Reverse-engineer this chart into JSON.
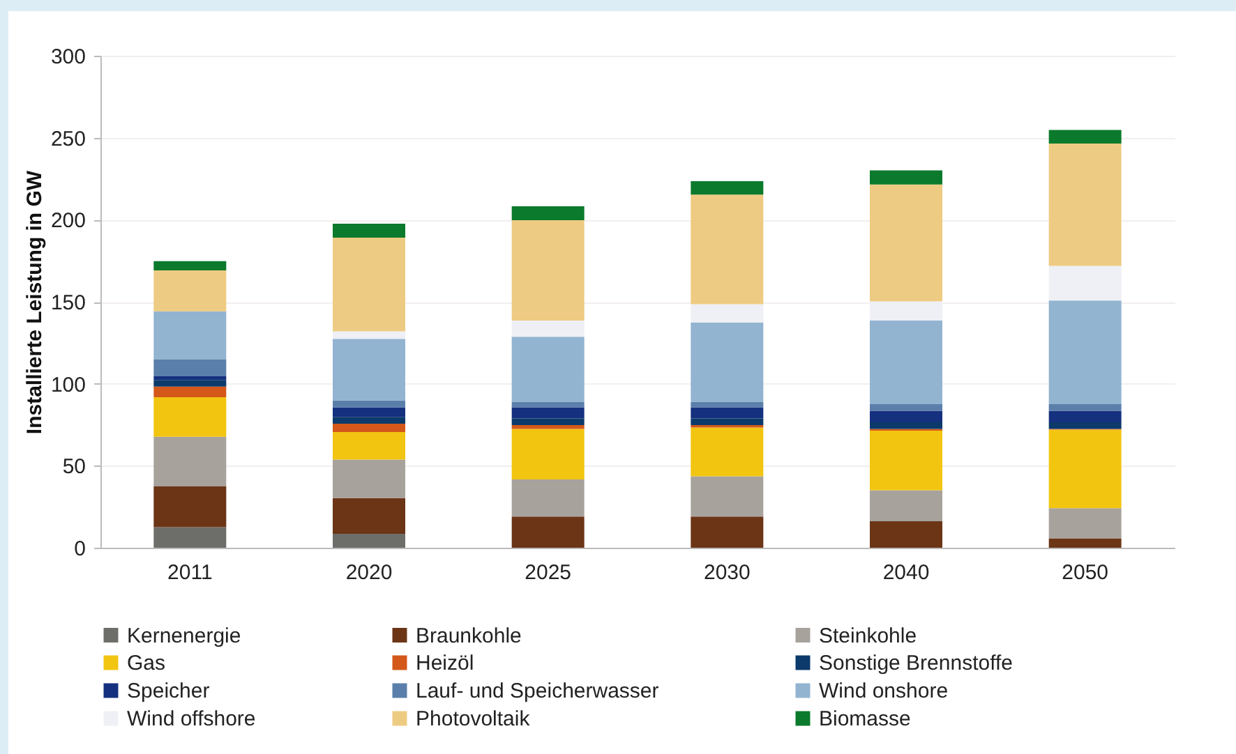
{
  "chart_data": {
    "type": "bar",
    "stacked": true,
    "ylabel": "Installierte Leistung in GW",
    "categories": [
      "2011",
      "2020",
      "2025",
      "2030",
      "2040",
      "2050"
    ],
    "ylim": [
      0,
      300
    ],
    "yticks": [
      0,
      50,
      100,
      150,
      200,
      250,
      300
    ],
    "grid": "y",
    "legend": "bottom",
    "series": [
      {
        "name": "Kernenergie",
        "color": "#6d6e6a",
        "values": [
          12.5,
          8.5,
          0,
          0,
          0,
          0
        ]
      },
      {
        "name": "Braunkohle",
        "color": "#6b3516",
        "values": [
          24.9,
          21.8,
          19,
          19,
          16.1,
          5.7
        ]
      },
      {
        "name": "Steinkohle",
        "color": "#a7a29c",
        "values": [
          30.3,
          23.5,
          22.6,
          24.6,
          19,
          18.4
        ]
      },
      {
        "name": "Gas",
        "color": "#f2c511",
        "values": [
          24.1,
          16.7,
          30.9,
          29.7,
          36.3,
          47.9
        ]
      },
      {
        "name": "Heizöl",
        "color": "#d4581a",
        "values": [
          6.5,
          5.1,
          2.3,
          1.5,
          1.1,
          0.5
        ]
      },
      {
        "name": "Sonstige Brennstoffe",
        "color": "#0b3a6b",
        "values": [
          4,
          4,
          4,
          4,
          4,
          4
        ]
      },
      {
        "name": "Speicher",
        "color": "#14307e",
        "values": [
          2.2,
          6,
          6.8,
          6.8,
          7,
          7
        ]
      },
      {
        "name": "Lauf- und Speicherwasser",
        "color": "#5a7fab",
        "values": [
          10.2,
          4.2,
          3.4,
          3.4,
          4,
          4
        ]
      },
      {
        "name": "Wind onshore",
        "color": "#92b4d0",
        "values": [
          29.5,
          37.6,
          39.6,
          48.4,
          51,
          63.2
        ]
      },
      {
        "name": "Wind offshore",
        "color": "#eef0f5",
        "values": [
          0,
          4.5,
          9.9,
          11.1,
          11.7,
          21.2
        ]
      },
      {
        "name": "Photovoltaik",
        "color": "#eecb82",
        "values": [
          24.9,
          57.2,
          61.2,
          66.8,
          71.3,
          74.6
        ]
      },
      {
        "name": "Biomasse",
        "color": "#0b7a2c",
        "values": [
          5.7,
          8.5,
          8.5,
          8.2,
          8.6,
          8.2
        ]
      }
    ]
  }
}
